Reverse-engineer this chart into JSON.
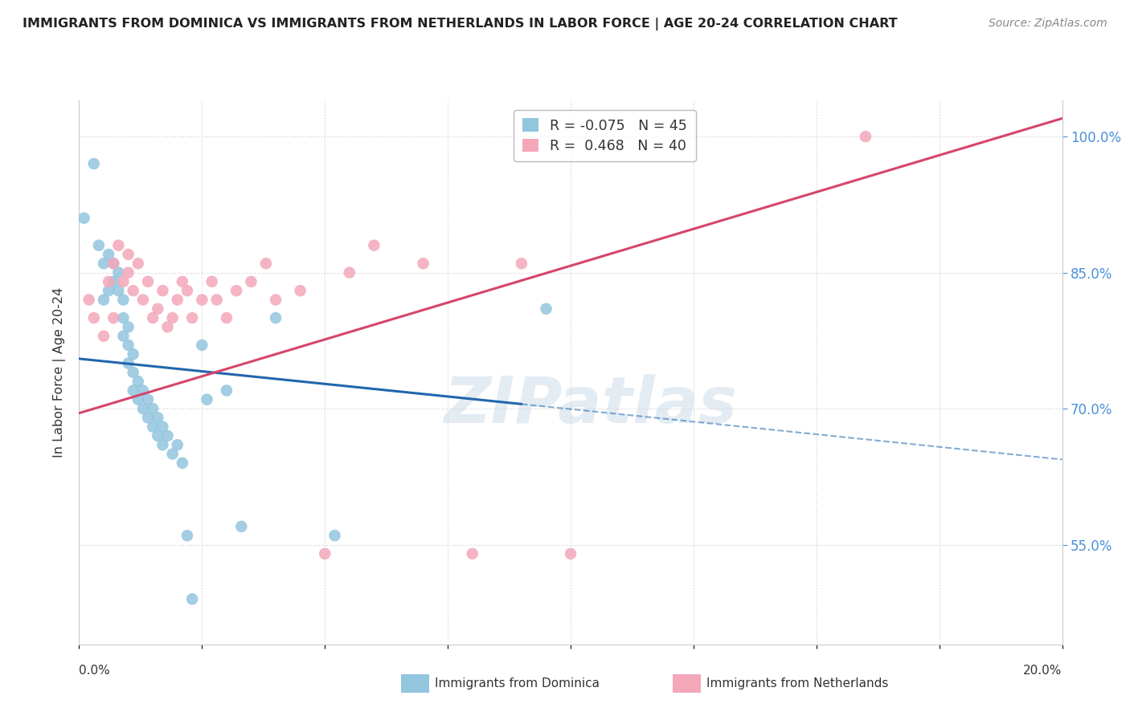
{
  "title": "IMMIGRANTS FROM DOMINICA VS IMMIGRANTS FROM NETHERLANDS IN LABOR FORCE | AGE 20-24 CORRELATION CHART",
  "source": "Source: ZipAtlas.com",
  "ylabel": "In Labor Force | Age 20-24",
  "ylabel_right_ticks": [
    "100.0%",
    "85.0%",
    "70.0%",
    "55.0%"
  ],
  "ylabel_right_values": [
    1.0,
    0.85,
    0.7,
    0.55
  ],
  "legend_r1": "-0.075",
  "legend_n1": "45",
  "legend_r2": "0.468",
  "legend_n2": "40",
  "dominica_color": "#92c5de",
  "netherlands_color": "#f4a7b9",
  "dominica_line_color": "#2166ac",
  "netherlands_line_color": "#d6456a",
  "dominica_scatter": {
    "x": [
      0.001,
      0.003,
      0.004,
      0.005,
      0.005,
      0.006,
      0.006,
      0.007,
      0.007,
      0.008,
      0.008,
      0.009,
      0.009,
      0.009,
      0.01,
      0.01,
      0.01,
      0.011,
      0.011,
      0.011,
      0.012,
      0.012,
      0.013,
      0.013,
      0.014,
      0.014,
      0.015,
      0.015,
      0.016,
      0.016,
      0.017,
      0.017,
      0.018,
      0.019,
      0.02,
      0.021,
      0.022,
      0.023,
      0.025,
      0.026,
      0.03,
      0.033,
      0.04,
      0.052,
      0.095
    ],
    "y": [
      0.91,
      0.97,
      0.88,
      0.86,
      0.82,
      0.87,
      0.83,
      0.86,
      0.84,
      0.85,
      0.83,
      0.82,
      0.8,
      0.78,
      0.79,
      0.77,
      0.75,
      0.76,
      0.74,
      0.72,
      0.73,
      0.71,
      0.72,
      0.7,
      0.71,
      0.69,
      0.7,
      0.68,
      0.69,
      0.67,
      0.68,
      0.66,
      0.67,
      0.65,
      0.66,
      0.64,
      0.56,
      0.49,
      0.77,
      0.71,
      0.72,
      0.57,
      0.8,
      0.56,
      0.81
    ]
  },
  "netherlands_scatter": {
    "x": [
      0.002,
      0.003,
      0.005,
      0.006,
      0.007,
      0.007,
      0.008,
      0.009,
      0.01,
      0.01,
      0.011,
      0.012,
      0.013,
      0.014,
      0.015,
      0.016,
      0.017,
      0.018,
      0.019,
      0.02,
      0.021,
      0.022,
      0.023,
      0.025,
      0.027,
      0.028,
      0.03,
      0.032,
      0.035,
      0.038,
      0.04,
      0.045,
      0.05,
      0.055,
      0.06,
      0.07,
      0.08,
      0.09,
      0.1,
      0.16
    ],
    "y": [
      0.82,
      0.8,
      0.78,
      0.84,
      0.8,
      0.86,
      0.88,
      0.84,
      0.85,
      0.87,
      0.83,
      0.86,
      0.82,
      0.84,
      0.8,
      0.81,
      0.83,
      0.79,
      0.8,
      0.82,
      0.84,
      0.83,
      0.8,
      0.82,
      0.84,
      0.82,
      0.8,
      0.83,
      0.84,
      0.86,
      0.82,
      0.83,
      0.54,
      0.85,
      0.88,
      0.86,
      0.54,
      0.86,
      0.54,
      1.0
    ]
  },
  "xlim": [
    0.0,
    0.2
  ],
  "ylim": [
    0.44,
    1.04
  ],
  "watermark": "ZIPatlas",
  "background_color": "#ffffff",
  "grid_color": "#d0d0d0"
}
